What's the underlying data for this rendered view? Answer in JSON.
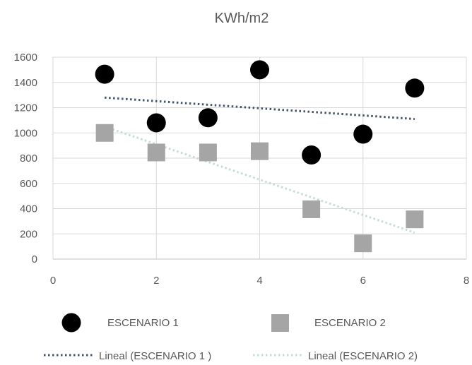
{
  "chart_data": {
    "type": "scatter",
    "title": "KWh/m2",
    "xlabel": "",
    "ylabel": "",
    "xlim": [
      0,
      8
    ],
    "ylim": [
      0,
      1600
    ],
    "xticks": [
      "0",
      "2",
      "4",
      "6",
      "8"
    ],
    "yticks": [
      "0",
      "200",
      "400",
      "600",
      "800",
      "1000",
      "1200",
      "1400",
      "1600"
    ],
    "grid": true,
    "legend_position": "bottom",
    "series": [
      {
        "name": "ESCENARIO 1",
        "marker": "circle",
        "color": "#000000",
        "x": [
          1,
          2,
          3,
          4,
          5,
          6,
          7
        ],
        "y": [
          1465,
          1080,
          1120,
          1500,
          825,
          990,
          1355
        ]
      },
      {
        "name": "ESCENARIO 2",
        "marker": "square",
        "color": "#a5a5a5",
        "x": [
          1,
          2,
          3,
          4,
          5,
          6,
          7
        ],
        "y": [
          1000,
          845,
          845,
          855,
          395,
          125,
          315
        ]
      }
    ],
    "trendlines": [
      {
        "name": "Lineal (ESCENARIO 1 )",
        "style": "dotted",
        "color": "#44546a",
        "x": [
          1,
          7
        ],
        "y": [
          1280,
          1110
        ]
      },
      {
        "name": "Lineal (ESCENARIO 2)",
        "style": "dotted",
        "color": "#c5dcd8",
        "x": [
          1,
          7
        ],
        "y": [
          1050,
          210
        ]
      }
    ]
  }
}
